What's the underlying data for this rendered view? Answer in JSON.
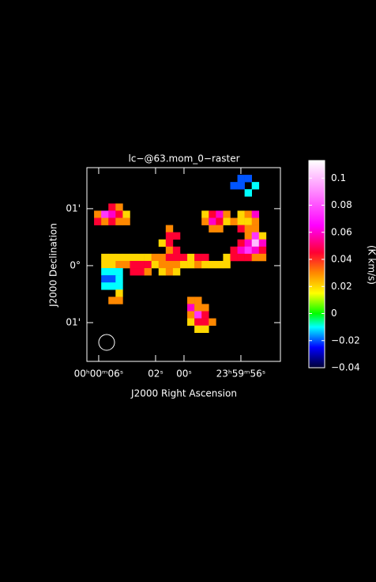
{
  "chart_data": {
    "type": "heatmap",
    "title": "lc−@63.mom_0−raster",
    "xlabel": "J2000 Right Ascension",
    "ylabel": "J2000 Declination",
    "colorbar_label": "(K km/s)",
    "xlim": [
      6.83,
      -6.78
    ],
    "ylim": [
      -1.68,
      1.72
    ],
    "xticks": [
      {
        "value": 6,
        "label": "00ʰ00ᵐ06ˢ"
      },
      {
        "value": 2,
        "label": "02ˢ"
      },
      {
        "value": 0,
        "label": "00ˢ"
      },
      {
        "value": -4,
        "label": "23ʰ59ᵐ56ˢ"
      }
    ],
    "yticks": [
      {
        "value": 1,
        "label": "01'"
      },
      {
        "value": 0,
        "label": "0°"
      },
      {
        "value": -1,
        "label": "01'"
      }
    ],
    "clim": [
      -0.04,
      0.113
    ],
    "cticks": [
      0.1,
      0.08,
      0.06,
      0.04,
      0.02,
      0,
      {
        "value": -0.02,
        "label": "−0.02"
      },
      {
        "value": -0.04,
        "label": "−0.04"
      }
    ],
    "colormap": [
      [
        -0.04,
        "#000033"
      ],
      [
        -0.025,
        "#0000ff"
      ],
      [
        -0.01,
        "#00ffff"
      ],
      [
        0,
        "#00ff00"
      ],
      [
        0.015,
        "#ffff00"
      ],
      [
        0.03,
        "#ff8800"
      ],
      [
        0.045,
        "#ff0033"
      ],
      [
        0.065,
        "#ff00ff"
      ],
      [
        0.09,
        "#ff88ff"
      ],
      [
        0.113,
        "#ffffff"
      ]
    ],
    "z": [
      [
        null,
        null,
        null,
        null,
        null,
        null,
        null,
        null,
        null,
        null,
        null,
        null,
        null,
        null,
        null,
        null,
        null,
        null,
        null,
        null,
        null,
        null,
        null,
        null,
        null,
        null,
        null
      ],
      [
        null,
        null,
        null,
        null,
        null,
        null,
        null,
        null,
        null,
        null,
        null,
        null,
        null,
        null,
        null,
        null,
        null,
        null,
        null,
        null,
        null,
        -0.02,
        -0.02,
        null,
        null,
        null,
        null
      ],
      [
        null,
        null,
        null,
        null,
        null,
        null,
        null,
        null,
        null,
        null,
        null,
        null,
        null,
        null,
        null,
        null,
        null,
        null,
        null,
        null,
        -0.02,
        -0.02,
        null,
        -0.01,
        null,
        null,
        null
      ],
      [
        null,
        null,
        null,
        null,
        null,
        null,
        null,
        null,
        null,
        null,
        null,
        null,
        null,
        null,
        null,
        null,
        null,
        null,
        null,
        null,
        null,
        null,
        -0.01,
        null,
        null,
        null,
        null
      ],
      [
        null,
        null,
        null,
        null,
        null,
        null,
        null,
        null,
        null,
        null,
        null,
        null,
        null,
        null,
        null,
        null,
        null,
        null,
        null,
        null,
        null,
        null,
        null,
        null,
        null,
        null,
        null
      ],
      [
        null,
        null,
        null,
        0.045,
        0.03,
        null,
        null,
        null,
        null,
        null,
        null,
        null,
        null,
        null,
        null,
        null,
        null,
        null,
        null,
        null,
        null,
        null,
        null,
        null,
        null,
        null,
        null
      ],
      [
        null,
        0.03,
        0.075,
        0.06,
        0.045,
        0.02,
        null,
        null,
        null,
        null,
        null,
        null,
        null,
        null,
        null,
        null,
        0.02,
        0.045,
        0.06,
        0.03,
        null,
        0.02,
        0.03,
        0.06,
        null,
        null,
        null
      ],
      [
        null,
        0.045,
        0.03,
        0.045,
        0.03,
        0.03,
        null,
        null,
        null,
        null,
        null,
        null,
        null,
        null,
        null,
        null,
        0.03,
        0.06,
        0.045,
        0.02,
        0.03,
        0.02,
        0.02,
        0.03,
        null,
        null,
        null
      ],
      [
        null,
        null,
        null,
        null,
        null,
        null,
        null,
        null,
        null,
        null,
        null,
        0.03,
        null,
        null,
        null,
        null,
        null,
        0.03,
        0.03,
        null,
        null,
        0.045,
        0.03,
        0.03,
        null,
        null,
        null
      ],
      [
        null,
        null,
        null,
        null,
        null,
        null,
        null,
        null,
        null,
        null,
        null,
        0.045,
        0.045,
        null,
        null,
        null,
        null,
        null,
        null,
        null,
        null,
        null,
        0.03,
        0.075,
        0.02,
        null,
        null
      ],
      [
        null,
        null,
        null,
        null,
        null,
        null,
        null,
        null,
        null,
        null,
        0.02,
        0.045,
        null,
        null,
        null,
        null,
        null,
        null,
        null,
        null,
        null,
        0.045,
        0.06,
        0.1,
        0.06,
        null,
        null
      ],
      [
        null,
        null,
        null,
        null,
        null,
        null,
        null,
        null,
        null,
        null,
        null,
        0.03,
        0.045,
        null,
        null,
        null,
        null,
        null,
        null,
        null,
        0.045,
        0.06,
        0.075,
        0.06,
        0.045,
        null,
        null
      ],
      [
        null,
        null,
        0.02,
        0.02,
        0.02,
        0.02,
        0.02,
        0.02,
        0.02,
        0.03,
        0.03,
        0.045,
        0.045,
        0.045,
        0.02,
        0.045,
        0.045,
        null,
        null,
        0.02,
        0.045,
        0.045,
        0.045,
        0.03,
        0.03,
        null,
        null
      ],
      [
        null,
        null,
        0.02,
        0.02,
        0.03,
        0.03,
        0.045,
        0.045,
        0.045,
        0.02,
        0.03,
        0.03,
        0.03,
        0.02,
        0.02,
        0.03,
        0.02,
        0.02,
        0.02,
        0.02,
        null,
        null,
        null,
        null,
        null,
        null,
        null
      ],
      [
        null,
        null,
        -0.01,
        -0.01,
        -0.01,
        null,
        0.045,
        0.045,
        0.03,
        null,
        0.02,
        0.03,
        0.02,
        null,
        null,
        null,
        null,
        null,
        null,
        null,
        null,
        null,
        null,
        null,
        null,
        null,
        null
      ],
      [
        null,
        null,
        -0.02,
        -0.02,
        -0.01,
        null,
        null,
        null,
        null,
        null,
        null,
        null,
        null,
        null,
        null,
        null,
        null,
        null,
        null,
        null,
        null,
        null,
        null,
        null,
        null,
        null,
        null
      ],
      [
        null,
        null,
        -0.01,
        -0.01,
        -0.01,
        null,
        null,
        null,
        null,
        null,
        null,
        null,
        null,
        null,
        null,
        null,
        null,
        null,
        null,
        null,
        null,
        null,
        null,
        null,
        null,
        null,
        null
      ],
      [
        null,
        null,
        null,
        null,
        0.02,
        null,
        null,
        null,
        null,
        null,
        null,
        null,
        null,
        null,
        null,
        null,
        null,
        null,
        null,
        null,
        null,
        null,
        null,
        null,
        null,
        null,
        null
      ],
      [
        null,
        null,
        null,
        0.03,
        0.03,
        null,
        null,
        null,
        null,
        null,
        null,
        null,
        null,
        null,
        0.03,
        0.03,
        null,
        null,
        null,
        null,
        null,
        null,
        null,
        null,
        null,
        null,
        null
      ],
      [
        null,
        null,
        null,
        null,
        null,
        null,
        null,
        null,
        null,
        null,
        null,
        null,
        null,
        null,
        0.06,
        0.03,
        0.03,
        null,
        null,
        null,
        null,
        null,
        null,
        null,
        null,
        null,
        null
      ],
      [
        null,
        null,
        null,
        null,
        null,
        null,
        null,
        null,
        null,
        null,
        null,
        null,
        null,
        null,
        0.03,
        0.075,
        0.045,
        null,
        null,
        null,
        null,
        null,
        null,
        null,
        null,
        null,
        null
      ],
      [
        null,
        null,
        null,
        null,
        null,
        null,
        null,
        null,
        null,
        null,
        null,
        null,
        null,
        null,
        0.02,
        0.045,
        0.045,
        0.03,
        null,
        null,
        null,
        null,
        null,
        null,
        null,
        null,
        null
      ],
      [
        null,
        null,
        null,
        null,
        null,
        null,
        null,
        null,
        null,
        null,
        null,
        null,
        null,
        null,
        null,
        0.02,
        0.02,
        null,
        null,
        null,
        null,
        null,
        null,
        null,
        null,
        null,
        null
      ],
      [
        null,
        null,
        null,
        null,
        null,
        null,
        null,
        null,
        null,
        null,
        null,
        null,
        null,
        null,
        null,
        null,
        null,
        null,
        null,
        null,
        null,
        null,
        null,
        null,
        null,
        null,
        null
      ],
      [
        null,
        null,
        null,
        null,
        null,
        null,
        null,
        null,
        null,
        null,
        null,
        null,
        null,
        null,
        null,
        null,
        null,
        null,
        null,
        null,
        null,
        null,
        null,
        null,
        null,
        null,
        null
      ],
      [
        null,
        null,
        null,
        null,
        null,
        null,
        null,
        null,
        null,
        null,
        null,
        null,
        null,
        null,
        null,
        null,
        null,
        null,
        null,
        null,
        null,
        null,
        null,
        null,
        null,
        null,
        null
      ],
      [
        null,
        null,
        null,
        null,
        null,
        null,
        null,
        null,
        null,
        null,
        null,
        null,
        null,
        null,
        null,
        null,
        null,
        null,
        null,
        null,
        null,
        null,
        null,
        null,
        null,
        null,
        null
      ]
    ]
  }
}
